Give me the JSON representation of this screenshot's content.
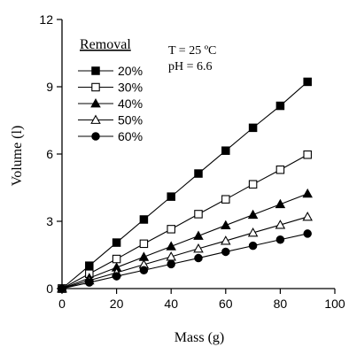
{
  "chart_data": {
    "type": "line",
    "xlabel": "Mass (g)",
    "ylabel": "Volume (l)",
    "xlim": [
      0,
      100
    ],
    "ylim": [
      0,
      12
    ],
    "x_ticks": [
      0,
      20,
      40,
      60,
      80,
      100
    ],
    "y_ticks": [
      0,
      3,
      6,
      9,
      12
    ],
    "x_tick_labels": [
      "0",
      "20",
      "40",
      "60",
      "80",
      "100"
    ],
    "y_tick_labels": [
      "0",
      "3",
      "6",
      "9",
      "12"
    ],
    "grid": false,
    "legend_title": "Removal",
    "legend_position": "top-left",
    "annotations": [
      "T = 25 ºC",
      "pH = 6.6"
    ],
    "x": [
      0,
      10,
      20,
      30,
      40,
      50,
      60,
      70,
      80,
      90
    ],
    "series": [
      {
        "name": "20%",
        "marker": "square-filled",
        "values": [
          0,
          1.02,
          2.05,
          3.08,
          4.1,
          5.13,
          6.15,
          7.17,
          8.15,
          9.22
        ]
      },
      {
        "name": "30%",
        "marker": "square-open",
        "values": [
          0,
          0.66,
          1.32,
          2.0,
          2.65,
          3.32,
          3.98,
          4.65,
          5.3,
          5.97
        ]
      },
      {
        "name": "40%",
        "marker": "triangle-filled",
        "values": [
          0,
          0.47,
          0.94,
          1.41,
          1.88,
          2.35,
          2.82,
          3.29,
          3.76,
          4.23
        ]
      },
      {
        "name": "50%",
        "marker": "triangle-open",
        "values": [
          0,
          0.36,
          0.71,
          1.07,
          1.42,
          1.78,
          2.13,
          2.49,
          2.84,
          3.2
        ]
      },
      {
        "name": "60%",
        "marker": "circle-filled",
        "values": [
          0,
          0.27,
          0.55,
          0.82,
          1.09,
          1.36,
          1.64,
          1.91,
          2.18,
          2.45
        ]
      }
    ]
  }
}
